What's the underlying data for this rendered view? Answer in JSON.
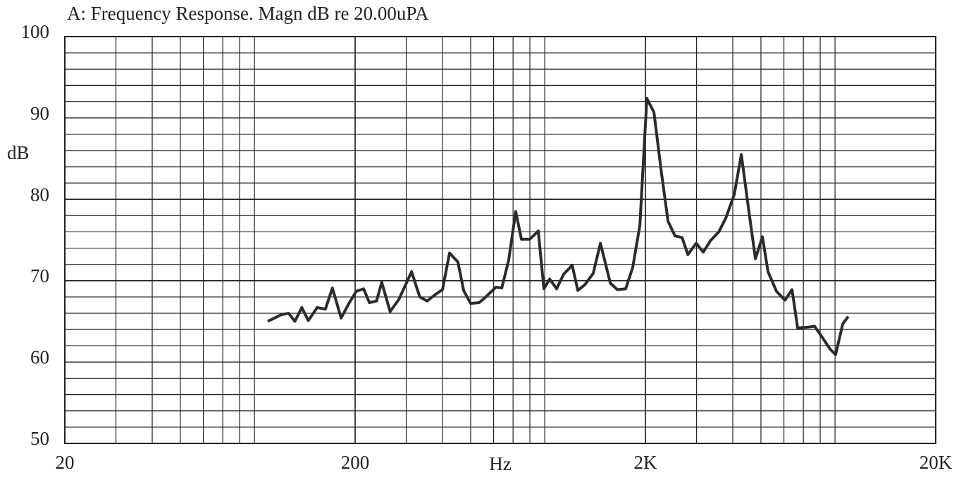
{
  "chart_data": {
    "type": "line",
    "title": "A: Frequency Response. Magn dB re 20.00uPA",
    "x_label": "Hz",
    "y_label": "dB",
    "log_x": true,
    "grid": true,
    "xlim": [
      20,
      20000
    ],
    "xticks": [
      20,
      200,
      {
        "value": 2000,
        "label": "2K"
      },
      {
        "value": 20000,
        "label": "20K"
      }
    ],
    "ylim": [
      50,
      100
    ],
    "yticks": [
      50,
      60,
      70,
      80,
      90,
      100
    ],
    "x": [
      100,
      111,
      118,
      124,
      131,
      138,
      148,
      158,
      167,
      179,
      191,
      202,
      214,
      224,
      237,
      247,
      264,
      283,
      313,
      334,
      354,
      378,
      400,
      423,
      452,
      473,
      500,
      535,
      560,
      611,
      640,
      676,
      715,
      748,
      800,
      855,
      894,
      936,
      989,
      1046,
      1119,
      1170,
      1237,
      1322,
      1400,
      1514,
      1600,
      1710,
      1808,
      1914,
      2023,
      2140,
      2263,
      2393,
      2530,
      2676,
      2800,
      2993,
      3165,
      3347,
      3579,
      3784,
      4047,
      4280,
      4526,
      4786,
      5061,
      5289,
      5655,
      6050,
      6400,
      6688,
      7314,
      7650,
      8180,
      8650,
      9040,
      9570,
      10000
    ],
    "series": [
      {
        "name": "A",
        "color": "#2b2b2b",
        "values": [
          65.0,
          65.8,
          66.0,
          65.0,
          66.7,
          65.1,
          66.7,
          66.5,
          69.1,
          65.4,
          67.3,
          68.7,
          69.0,
          67.3,
          67.5,
          69.8,
          66.2,
          67.7,
          71.1,
          68.0,
          67.5,
          68.3,
          68.9,
          73.4,
          72.3,
          68.8,
          67.2,
          67.3,
          67.9,
          69.2,
          69.1,
          72.5,
          78.5,
          75.1,
          75.1,
          76.1,
          69.0,
          70.2,
          69.0,
          70.8,
          71.9,
          68.8,
          69.5,
          70.9,
          74.6,
          69.7,
          68.9,
          69.0,
          71.6,
          76.8,
          92.4,
          90.7,
          83.7,
          77.3,
          75.5,
          75.3,
          73.2,
          74.6,
          73.5,
          74.9,
          76.0,
          77.7,
          80.6,
          85.5,
          79.0,
          72.7,
          75.4,
          71.1,
          68.7,
          67.6,
          68.9,
          64.2,
          64.3,
          64.4,
          62.9,
          61.6,
          60.9,
          64.7,
          65.6
        ]
      }
    ]
  }
}
